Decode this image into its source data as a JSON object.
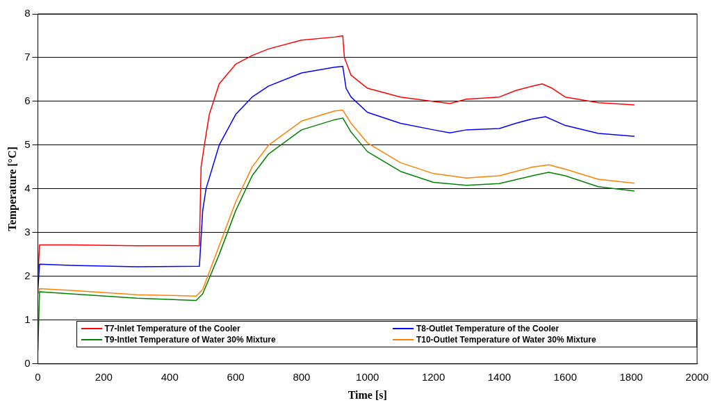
{
  "chart_data": {
    "type": "line",
    "xlabel": "Time [s]",
    "ylabel": "Temperature [°C]",
    "xlim": [
      0,
      2000
    ],
    "xticks": [
      0,
      200,
      400,
      600,
      800,
      1000,
      1200,
      1400,
      1600,
      1800,
      2000
    ],
    "ylim": [
      0,
      8
    ],
    "yticks": [
      0,
      1,
      2,
      3,
      4,
      5,
      6,
      7,
      8
    ],
    "grid": "y",
    "legend": "bottom",
    "marker": "none",
    "line_style": "solid",
    "series": [
      {
        "name": "T7-Inlet Temperature of the Cooler",
        "color": "#ff0000",
        "x": [
          0,
          5,
          100,
          300,
          490,
          495,
          505,
          520,
          550,
          600,
          650,
          700,
          800,
          900,
          925,
          930,
          950,
          1000,
          1100,
          1200,
          1250,
          1300,
          1400,
          1450,
          1500,
          1530,
          1560,
          1600,
          1700,
          1810
        ],
        "values": [
          2.0,
          2.72,
          2.72,
          2.7,
          2.7,
          4.5,
          5.0,
          5.7,
          6.4,
          6.85,
          7.05,
          7.2,
          7.4,
          7.47,
          7.5,
          7.0,
          6.6,
          6.3,
          6.1,
          6.0,
          5.95,
          6.05,
          6.1,
          6.25,
          6.35,
          6.4,
          6.3,
          6.1,
          5.97,
          5.92
        ]
      },
      {
        "name": "T8-Outlet Temperature of the Cooler",
        "color": "#0000ff",
        "x": [
          0,
          5,
          100,
          300,
          490,
          500,
          510,
          550,
          600,
          650,
          700,
          800,
          900,
          925,
          935,
          950,
          1000,
          1100,
          1200,
          1250,
          1300,
          1400,
          1450,
          1500,
          1540,
          1600,
          1700,
          1810
        ],
        "values": [
          1.7,
          2.28,
          2.25,
          2.22,
          2.23,
          3.5,
          4.0,
          5.0,
          5.7,
          6.1,
          6.35,
          6.65,
          6.78,
          6.8,
          6.3,
          6.1,
          5.75,
          5.5,
          5.35,
          5.28,
          5.35,
          5.38,
          5.5,
          5.6,
          5.65,
          5.45,
          5.27,
          5.2
        ]
      },
      {
        "name": "T9-Intlet Temperature of Water 30% Mixture",
        "color": "#008000",
        "x": [
          0,
          5,
          100,
          300,
          480,
          500,
          550,
          600,
          650,
          700,
          800,
          900,
          925,
          950,
          1000,
          1100,
          1200,
          1300,
          1400,
          1500,
          1550,
          1600,
          1700,
          1810
        ],
        "values": [
          0.3,
          1.65,
          1.6,
          1.5,
          1.45,
          1.6,
          2.5,
          3.5,
          4.3,
          4.8,
          5.35,
          5.58,
          5.62,
          5.3,
          4.85,
          4.4,
          4.15,
          4.08,
          4.12,
          4.3,
          4.38,
          4.3,
          4.05,
          3.95
        ]
      },
      {
        "name": "T10-Outlet Temperature of Water 30% Mixture",
        "color": "#ff8000",
        "x": [
          0,
          5,
          100,
          300,
          480,
          500,
          550,
          600,
          650,
          700,
          800,
          900,
          925,
          950,
          1000,
          1100,
          1200,
          1300,
          1400,
          1500,
          1550,
          1600,
          1700,
          1810
        ],
        "values": [
          1.6,
          1.72,
          1.68,
          1.58,
          1.55,
          1.7,
          2.7,
          3.7,
          4.5,
          5.0,
          5.55,
          5.78,
          5.8,
          5.5,
          5.05,
          4.6,
          4.35,
          4.25,
          4.3,
          4.5,
          4.55,
          4.45,
          4.22,
          4.13
        ]
      }
    ]
  }
}
